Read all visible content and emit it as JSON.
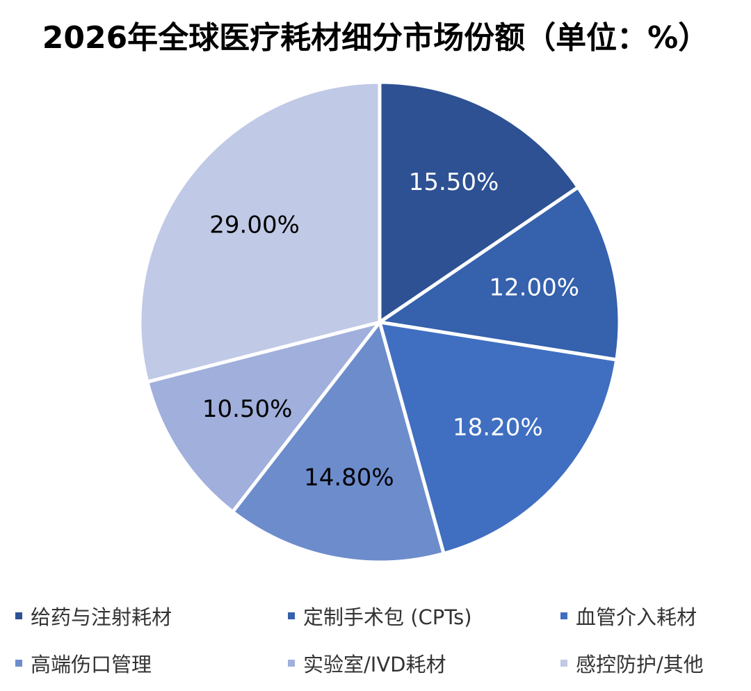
{
  "chart_data": {
    "type": "pie",
    "title": "2026年全球医疗耗材细分市场份额（单位：%）",
    "categories": [
      "给药与注射耗材",
      "定制手术包 (CPTs)",
      "血管介入耗材",
      "高端伤口管理",
      "实验室/IVD耗材",
      "感控防护/其他"
    ],
    "values": [
      15.5,
      12.0,
      18.2,
      14.8,
      10.5,
      29.0
    ],
    "value_labels": [
      "15.50%",
      "12.00%",
      "18.20%",
      "14.80%",
      "10.50%",
      "29.00%"
    ],
    "colors": [
      "#2d5193",
      "#3561ad",
      "#406fc1",
      "#6d8ccc",
      "#a0afdb",
      "#c0c9e5"
    ],
    "label_colors": [
      "#ffffff",
      "#ffffff",
      "#ffffff",
      "#000000",
      "#000000",
      "#000000"
    ],
    "start_angle": "12 o'clock",
    "direction": "clockwise",
    "legend_position": "bottom"
  }
}
